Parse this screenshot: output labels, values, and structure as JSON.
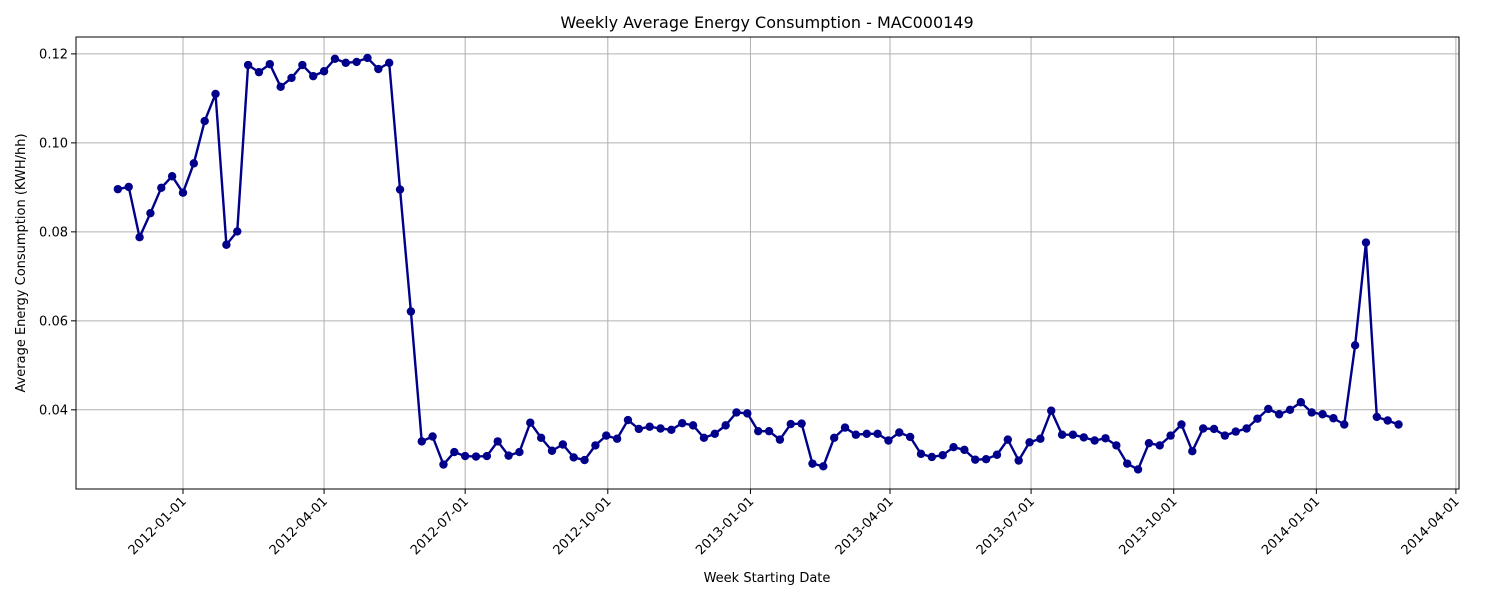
{
  "chart_data": {
    "type": "line",
    "title": "Weekly Average Energy Consumption - MAC000149",
    "xlabel": "Week Starting Date",
    "ylabel": "Average Energy Consumption (KWH/hh)",
    "xlim": [
      "2011-10-24",
      "2014-04-03"
    ],
    "ylim": [
      0.0222,
      0.1238
    ],
    "x_ticks": [
      "2012-01-01",
      "2012-04-01",
      "2012-07-01",
      "2012-10-01",
      "2013-01-01",
      "2013-04-01",
      "2013-07-01",
      "2013-10-01",
      "2014-01-01",
      "2014-04-01"
    ],
    "y_ticks": [
      0.04,
      0.06,
      0.08,
      0.1,
      0.12
    ],
    "y_tick_labels": [
      "0.04",
      "0.06",
      "0.08",
      "0.10",
      "0.12"
    ],
    "grid": true,
    "line_color": "#00008b",
    "marker": "circle",
    "series": [
      {
        "x": [
          "2011-11-20",
          "2011-11-27",
          "2011-12-04",
          "2011-12-11",
          "2011-12-18",
          "2011-12-25",
          "2012-01-01",
          "2012-01-08",
          "2012-01-15",
          "2012-01-22",
          "2012-01-29",
          "2012-02-05",
          "2012-02-12",
          "2012-02-19",
          "2012-02-26",
          "2012-03-04",
          "2012-03-11",
          "2012-03-18",
          "2012-03-25",
          "2012-04-01",
          "2012-04-08",
          "2012-04-15",
          "2012-04-22",
          "2012-04-29",
          "2012-05-06",
          "2012-05-13",
          "2012-05-20",
          "2012-05-27",
          "2012-06-03",
          "2012-06-10",
          "2012-06-17",
          "2012-06-24",
          "2012-07-01",
          "2012-07-08",
          "2012-07-15",
          "2012-07-22",
          "2012-07-29",
          "2012-08-05",
          "2012-08-12",
          "2012-08-19",
          "2012-08-26",
          "2012-09-02",
          "2012-09-09",
          "2012-09-16",
          "2012-09-23",
          "2012-09-30",
          "2012-10-07",
          "2012-10-14",
          "2012-10-21",
          "2012-10-28",
          "2012-11-04",
          "2012-11-11",
          "2012-11-18",
          "2012-11-25",
          "2012-12-02",
          "2012-12-09",
          "2012-12-16",
          "2012-12-23",
          "2012-12-30",
          "2013-01-06",
          "2013-01-13",
          "2013-01-20",
          "2013-01-27",
          "2013-02-03",
          "2013-02-10",
          "2013-02-17",
          "2013-02-24",
          "2013-03-03",
          "2013-03-10",
          "2013-03-17",
          "2013-03-24",
          "2013-03-31",
          "2013-04-07",
          "2013-04-14",
          "2013-04-21",
          "2013-04-28",
          "2013-05-05",
          "2013-05-12",
          "2013-05-19",
          "2013-05-26",
          "2013-06-02",
          "2013-06-09",
          "2013-06-16",
          "2013-06-23",
          "2013-06-30",
          "2013-07-07",
          "2013-07-14",
          "2013-07-21",
          "2013-07-28",
          "2013-08-04",
          "2013-08-11",
          "2013-08-18",
          "2013-08-25",
          "2013-09-01",
          "2013-09-08",
          "2013-09-15",
          "2013-09-22",
          "2013-09-29",
          "2013-10-06",
          "2013-10-13",
          "2013-10-20",
          "2013-10-27",
          "2013-11-03",
          "2013-11-10",
          "2013-11-17",
          "2013-11-24",
          "2013-12-01",
          "2013-12-08",
          "2013-12-15",
          "2013-12-22",
          "2013-12-29",
          "2014-01-05",
          "2014-01-12",
          "2014-01-19",
          "2014-01-26",
          "2014-02-02",
          "2014-02-09",
          "2014-02-16",
          "2014-02-23"
        ],
        "values": [
          0.0896,
          0.0901,
          0.0788,
          0.0842,
          0.0899,
          0.0925,
          0.0888,
          0.0954,
          0.1049,
          0.111,
          0.0771,
          0.0801,
          0.1175,
          0.1159,
          0.1177,
          0.1126,
          0.1146,
          0.1175,
          0.115,
          0.1161,
          0.1189,
          0.118,
          0.1182,
          0.1191,
          0.1166,
          0.118,
          0.0895,
          0.0621,
          0.0329,
          0.034,
          0.0277,
          0.0305,
          0.0296,
          0.0295,
          0.0296,
          0.0329,
          0.0297,
          0.0305,
          0.0371,
          0.0337,
          0.0308,
          0.0322,
          0.0293,
          0.0287,
          0.032,
          0.0342,
          0.0335,
          0.0377,
          0.0357,
          0.0362,
          0.0358,
          0.0355,
          0.037,
          0.0365,
          0.0337,
          0.0346,
          0.0365,
          0.0394,
          0.0392,
          0.0352,
          0.0352,
          0.0333,
          0.0368,
          0.0369,
          0.0279,
          0.0273,
          0.0337,
          0.036,
          0.0344,
          0.0346,
          0.0346,
          0.0331,
          0.0349,
          0.0339,
          0.0301,
          0.0294,
          0.0298,
          0.0316,
          0.031,
          0.0288,
          0.0289,
          0.0299,
          0.0333,
          0.0286,
          0.0327,
          0.0335,
          0.0398,
          0.0344,
          0.0344,
          0.0338,
          0.0331,
          0.0336,
          0.032,
          0.0279,
          0.0266,
          0.0325,
          0.032,
          0.0342,
          0.0367,
          0.0307,
          0.0358,
          0.0357,
          0.0342,
          0.0351,
          0.0358,
          0.038,
          0.0402,
          0.039,
          0.04,
          0.0417,
          0.0394,
          0.039,
          0.0381,
          0.0367,
          0.0545,
          0.0776,
          0.0384,
          0.0376,
          0.0367
        ]
      }
    ]
  }
}
